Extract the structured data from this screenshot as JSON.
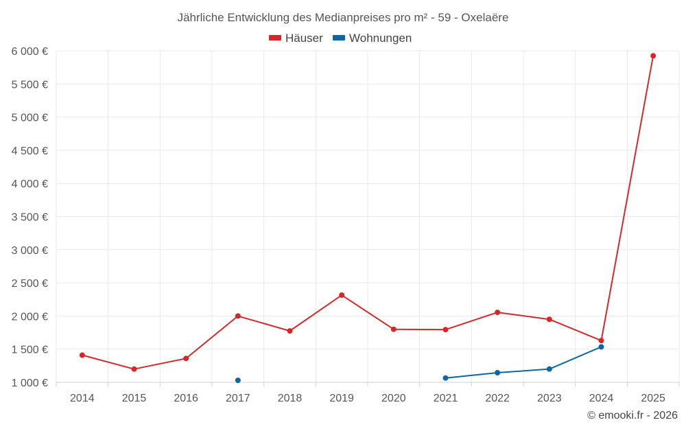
{
  "chart_data": {
    "type": "line",
    "title": "Jährliche Entwicklung des Medianpreises pro m² - 59 - Oxelaëre",
    "xlabel": "",
    "ylabel": "",
    "categories": [
      "2014",
      "2015",
      "2016",
      "2017",
      "2018",
      "2019",
      "2020",
      "2021",
      "2022",
      "2023",
      "2024",
      "2025"
    ],
    "ylim": [
      1000,
      6000
    ],
    "yticks": [
      1000,
      1500,
      2000,
      2500,
      3000,
      3500,
      4000,
      4500,
      5000,
      5500,
      6000
    ],
    "ytick_labels": [
      "1 000 €",
      "1 500 €",
      "2 000 €",
      "2 500 €",
      "3 000 €",
      "3 500 €",
      "4 000 €",
      "4 500 €",
      "5 000 €",
      "5 500 €",
      "6 000 €"
    ],
    "grid": true,
    "legend_position": "top-center",
    "series": [
      {
        "name": "Häuser",
        "color": "#d62728",
        "values": [
          1410,
          1200,
          1360,
          2000,
          1775,
          2315,
          1800,
          1795,
          2055,
          1950,
          1630,
          5925
        ]
      },
      {
        "name": "Wohnungen",
        "color": "#0a67a3",
        "values": [
          null,
          null,
          null,
          1030,
          null,
          null,
          null,
          1065,
          1145,
          1200,
          1535,
          null
        ]
      }
    ]
  },
  "footer": {
    "credit": "© emooki.fr - 2026"
  }
}
